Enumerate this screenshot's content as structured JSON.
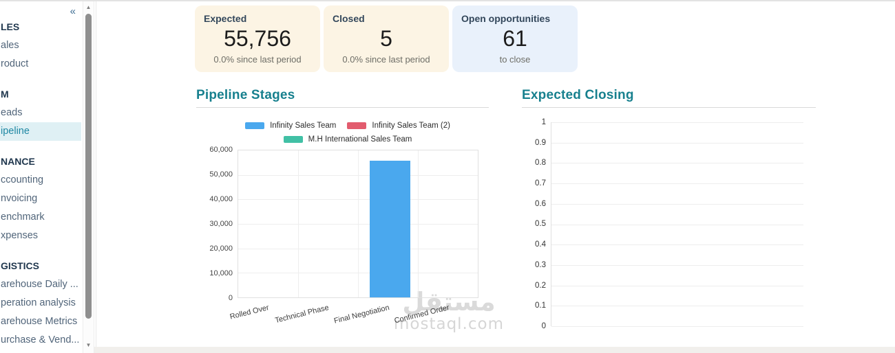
{
  "sidebar": {
    "sections": [
      {
        "header": "LES",
        "items": [
          "ales",
          "roduct"
        ]
      },
      {
        "header": "M",
        "items": [
          "eads",
          "ipeline"
        ]
      },
      {
        "header": "NANCE",
        "items": [
          "ccounting",
          "nvoicing",
          "enchmark",
          "xpenses"
        ]
      },
      {
        "header": "GISTICS",
        "items": [
          "arehouse Daily ...",
          "peration analysis",
          "arehouse Metrics",
          "urchase & Vend..."
        ]
      }
    ],
    "selected_item": "ipeline"
  },
  "icons": {
    "collapse": "«",
    "scroll_up": "▲",
    "scroll_down": "▼"
  },
  "kpi_cards": [
    {
      "label": "Expected",
      "value": "55,756",
      "subtext": "0.0% since last period",
      "bg_color": "#fcf4e4"
    },
    {
      "label": "Closed",
      "value": "5",
      "subtext": "0.0% since last period",
      "bg_color": "#fcf4e4"
    },
    {
      "label": "Open opportunities",
      "value": "61",
      "subtext": "to close",
      "bg_color": "#e9f1fb"
    }
  ],
  "watermark": {
    "logo_text": "مستقل",
    "site_text": "mostaql.com"
  },
  "colors": {
    "accent_teal": "#17808e",
    "bar_blue": "#4aa8ee",
    "legend_red": "#e25c6e",
    "legend_teal": "#41c0a5",
    "kpi_cream_bg": "#fcf4e4",
    "kpi_blue_bg": "#e9f1fb",
    "sidebar_selected_bg": "#dff0f4",
    "sidebar_selected_text": "#1e87a3"
  },
  "chart_data": [
    {
      "type": "bar",
      "title": "Pipeline Stages",
      "categories": [
        "Rolled Over",
        "Technical Phase",
        "Final Negotiation",
        "Confirmed Order"
      ],
      "series": [
        {
          "name": "Infinity Sales Team",
          "color": "#4aa8ee",
          "values": [
            0,
            0,
            55756,
            0
          ]
        },
        {
          "name": "Infinity Sales Team (2)",
          "color": "#e25c6e",
          "values": [
            0,
            0,
            0,
            0
          ]
        },
        {
          "name": "M.H International Sales Team",
          "color": "#41c0a5",
          "values": [
            0,
            0,
            0,
            0
          ]
        }
      ],
      "ylim": [
        0,
        60000
      ],
      "ytick_step": 10000,
      "yticks": [
        "60,000",
        "50,000",
        "40,000",
        "30,000",
        "20,000",
        "10,000",
        "0"
      ],
      "grid": true,
      "legend_position": "top"
    },
    {
      "type": "bar",
      "title": "Expected Closing",
      "categories": [],
      "series": [],
      "ylim": [
        0,
        1
      ],
      "ytick_step": 0.1,
      "yticks": [
        "1",
        "0.9",
        "0.8",
        "0.7",
        "0.6",
        "0.5",
        "0.4",
        "0.3",
        "0.2",
        "0.1",
        "0"
      ],
      "grid": true,
      "note": "empty chart, no data plotted"
    }
  ]
}
